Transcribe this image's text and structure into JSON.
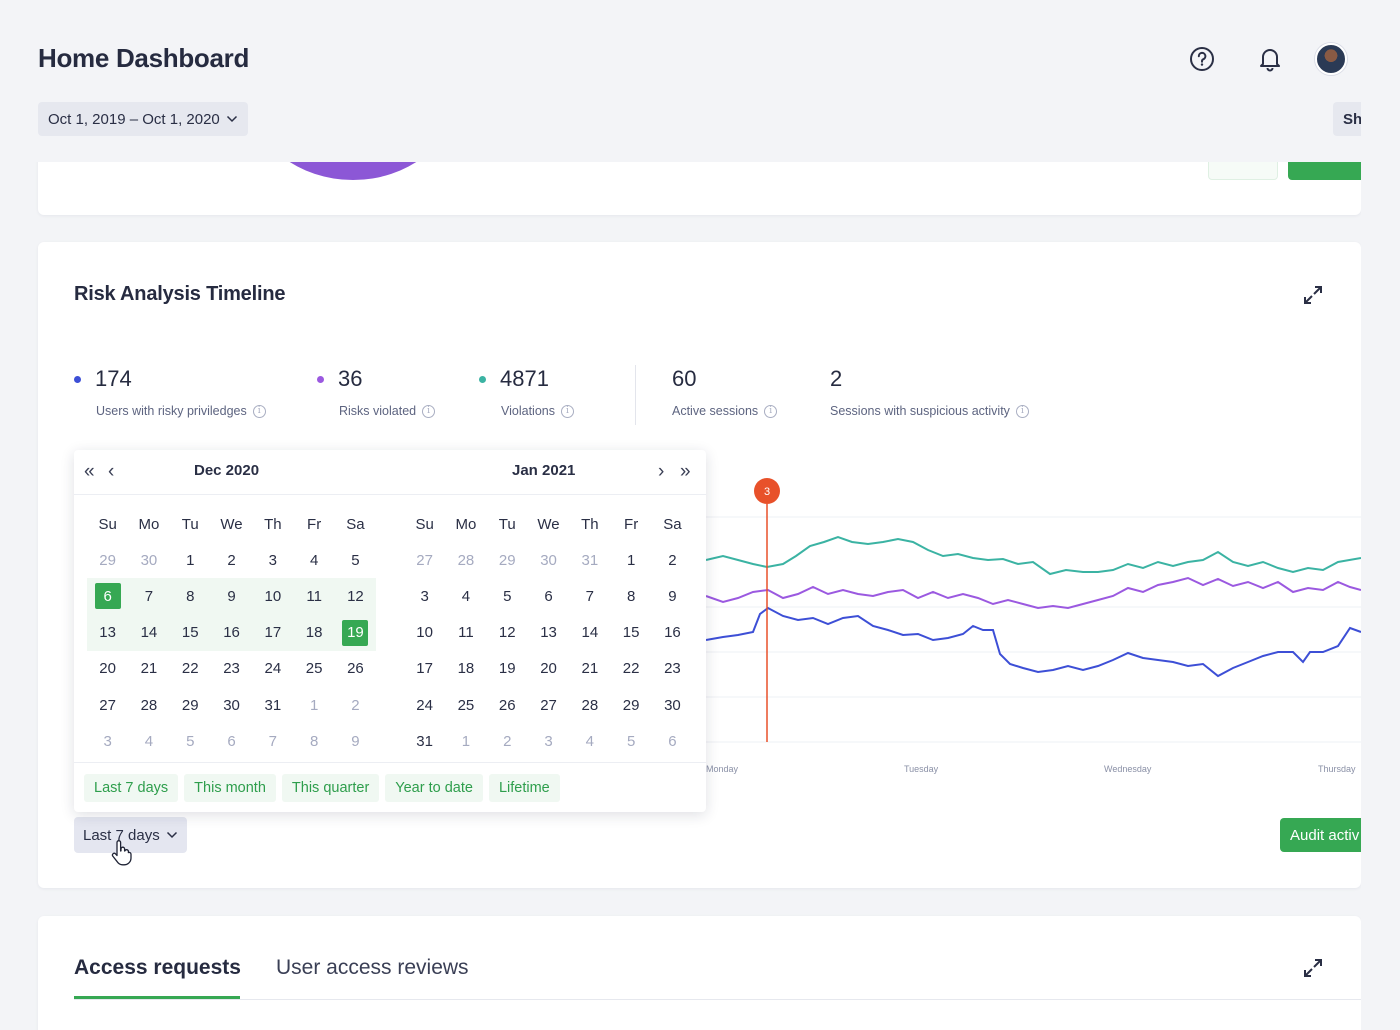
{
  "header": {
    "title": "Home Dashboard",
    "date_range": "Oct 1, 2019 – Oct 1, 2020",
    "share_label": "Sh",
    "icons": [
      "help-icon",
      "bell-icon",
      "avatar"
    ]
  },
  "risk": {
    "title": "Risk Analysis Timeline",
    "stats": [
      {
        "value": "174",
        "label": "Users with risky priviledges",
        "color": "#3d4fd6"
      },
      {
        "value": "36",
        "label": "Risks violated",
        "color": "#9b59e0"
      },
      {
        "value": "4871",
        "label": "Violations",
        "color": "#3bb3a3"
      },
      {
        "value": "60",
        "label": "Active sessions"
      },
      {
        "value": "2",
        "label": "Sessions with suspicious activity"
      }
    ],
    "marker_label": "3",
    "x_labels": [
      "Monday",
      "Tuesday",
      "Wednesday",
      "Thursday"
    ],
    "audit_label": "Audit activ",
    "range_button": "Last 7 days"
  },
  "calendar": {
    "left_month": "Dec 2020",
    "right_month": "Jan 2021",
    "weekdays": [
      "Su",
      "Mo",
      "Tu",
      "We",
      "Th",
      "Fr",
      "Sa"
    ],
    "left_days": [
      [
        "29",
        "30",
        "1",
        "2",
        "3",
        "4",
        "5"
      ],
      [
        "6",
        "7",
        "8",
        "9",
        "10",
        "11",
        "12"
      ],
      [
        "13",
        "14",
        "15",
        "16",
        "17",
        "18",
        "19"
      ],
      [
        "20",
        "21",
        "22",
        "23",
        "24",
        "25",
        "26"
      ],
      [
        "27",
        "28",
        "29",
        "30",
        "31",
        "1",
        "2"
      ],
      [
        "3",
        "4",
        "5",
        "6",
        "7",
        "8",
        "9"
      ]
    ],
    "right_days": [
      [
        "27",
        "28",
        "29",
        "30",
        "31",
        "1",
        "2"
      ],
      [
        "3",
        "4",
        "5",
        "6",
        "7",
        "8",
        "9"
      ],
      [
        "10",
        "11",
        "12",
        "13",
        "14",
        "15",
        "16"
      ],
      [
        "17",
        "18",
        "19",
        "20",
        "21",
        "22",
        "23"
      ],
      [
        "24",
        "25",
        "26",
        "27",
        "28",
        "29",
        "30"
      ],
      [
        "31",
        "1",
        "2",
        "3",
        "4",
        "5",
        "6"
      ]
    ],
    "selected_start": "6",
    "selected_end": "19",
    "presets": [
      "Last 7 days",
      "This month",
      "This quarter",
      "Year to date",
      "Lifetime"
    ]
  },
  "access": {
    "tabs": [
      "Access requests",
      "User access reviews"
    ]
  },
  "colors": {
    "accent": "#36a853",
    "marker": "#e8512a"
  }
}
